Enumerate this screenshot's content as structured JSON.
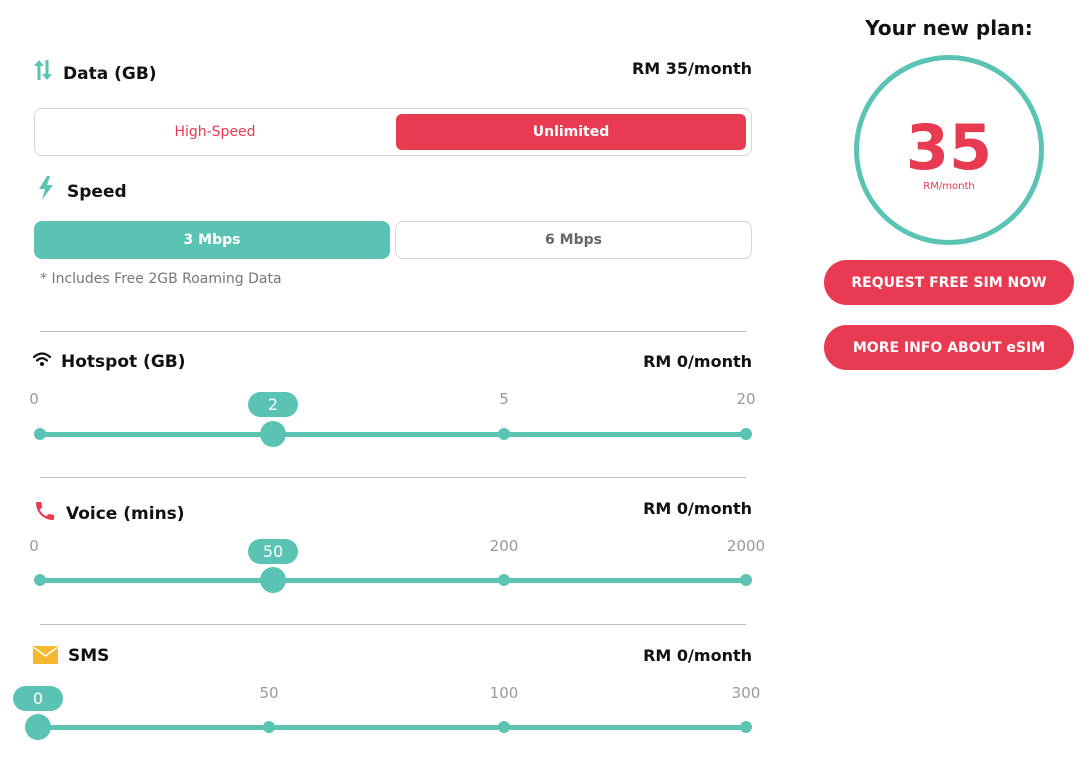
{
  "data_section": {
    "title": "Data (GB)",
    "price": "RM 35/month",
    "options": [
      {
        "label": "High-Speed",
        "selected": false
      },
      {
        "label": "Unlimited",
        "selected": true
      }
    ],
    "icon": "data-transfer-arrows-icon"
  },
  "speed_section": {
    "title": "Speed",
    "options": [
      {
        "label": "3 Mbps",
        "selected": true
      },
      {
        "label": "6 Mbps",
        "selected": false
      }
    ],
    "note": "* Includes Free 2GB Roaming Data",
    "icon": "lightning-icon"
  },
  "hotspot_section": {
    "title": "Hotspot (GB)",
    "price": "RM 0/month",
    "ticks": [
      "0",
      "2",
      "5",
      "20"
    ],
    "value": "2",
    "selected_index": 1,
    "icon": "wifi-icon"
  },
  "voice_section": {
    "title": "Voice (mins)",
    "price": "RM 0/month",
    "ticks": [
      "0",
      "50",
      "200",
      "2000"
    ],
    "value": "50",
    "selected_index": 1,
    "icon": "phone-icon"
  },
  "sms_section": {
    "title": "SMS",
    "price": "RM 0/month",
    "ticks": [
      "0",
      "50",
      "100",
      "300"
    ],
    "value": "0",
    "selected_index": 0,
    "icon": "envelope-icon"
  },
  "plan_summary": {
    "title": "Your new plan:",
    "amount": "35",
    "unit": "RM/month",
    "primary_button": "REQUEST FREE SIM NOW",
    "secondary_button": "MORE INFO ABOUT eSIM"
  },
  "colors": {
    "accent_red": "#e83a50",
    "accent_teal": "#5bc3b4",
    "envelope_yellow": "#f5b82e"
  }
}
